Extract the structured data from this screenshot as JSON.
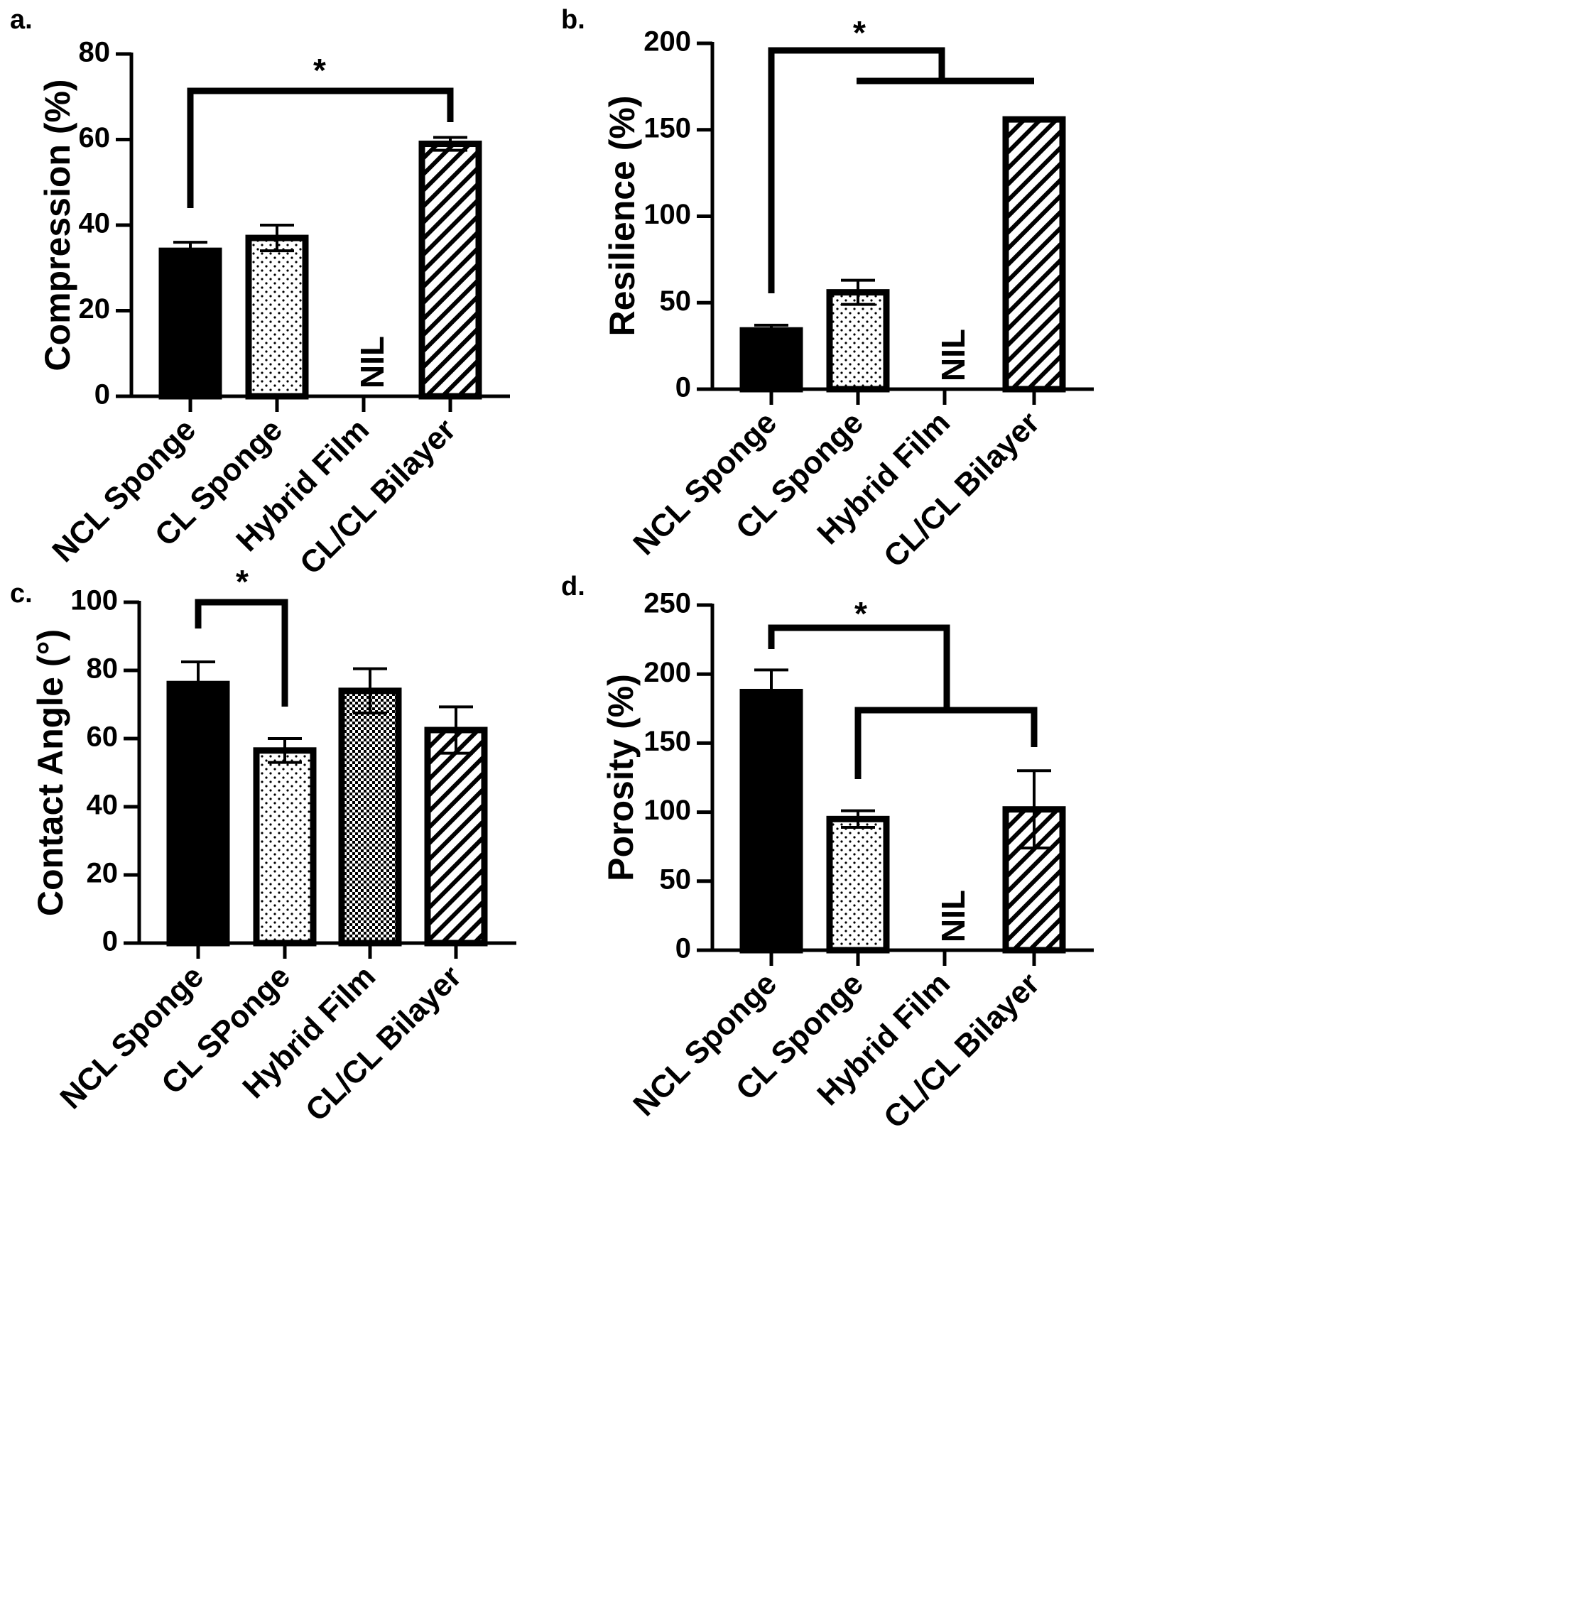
{
  "chart_data": [
    {
      "panel": "a.",
      "type": "bar",
      "ylabel": "Compression (%)",
      "ylim": [
        0,
        80
      ],
      "yticks": [
        "0",
        "20",
        "40",
        "60",
        "80"
      ],
      "categories": [
        "NCL Sponge",
        "CL Sponge",
        "Hybrid Film",
        "CL/CL Bilayer"
      ],
      "values": [
        34,
        37,
        null,
        59
      ],
      "errors": [
        2,
        3,
        null,
        1.5
      ],
      "patterns": [
        "solid",
        "dots",
        "none",
        "hatch"
      ],
      "annotations": [
        {
          "type": "nil",
          "category": 2,
          "text": "NIL"
        },
        {
          "type": "significance",
          "text": "*",
          "from": [
            0
          ],
          "to": [
            3
          ]
        }
      ]
    },
    {
      "panel": "b.",
      "type": "bar",
      "ylabel": "Resilience (%)",
      "ylim": [
        0,
        200
      ],
      "yticks": [
        "0",
        "50",
        "100",
        "150",
        "200"
      ],
      "categories": [
        "NCL Sponge",
        "CL Sponge",
        "Hybrid Film",
        "CL/CL Bilayer"
      ],
      "values": [
        34,
        56,
        null,
        156
      ],
      "errors": [
        3,
        7,
        null,
        0.5
      ],
      "patterns": [
        "solid",
        "dots",
        "none",
        "hatch"
      ],
      "annotations": [
        {
          "type": "nil",
          "category": 2,
          "text": "NIL"
        },
        {
          "type": "significance",
          "text": "*",
          "from": [
            0
          ],
          "to": [
            1,
            3
          ]
        }
      ]
    },
    {
      "panel": "c.",
      "type": "bar",
      "ylabel": "Contact Angle (°)",
      "ylim": [
        0,
        100
      ],
      "yticks": [
        "0",
        "20",
        "40",
        "60",
        "80",
        "100"
      ],
      "categories": [
        "NCL Sponge",
        "CL SPonge",
        "Hybrid Film",
        "CL/CL Bilayer"
      ],
      "values": [
        76,
        56.5,
        74,
        62.5
      ],
      "errors": [
        6.5,
        3.5,
        6.5,
        6.8
      ],
      "patterns": [
        "solid",
        "dots",
        "checker",
        "hatch"
      ],
      "annotations": [
        {
          "type": "significance",
          "text": "*",
          "from": [
            0
          ],
          "to": [
            1
          ]
        }
      ]
    },
    {
      "panel": "d.",
      "type": "bar",
      "ylabel": "Porosity (%)",
      "ylim": [
        0,
        250
      ],
      "yticks": [
        "0",
        "50",
        "100",
        "150",
        "200",
        "250"
      ],
      "categories": [
        "NCL Sponge",
        "CL Sponge",
        "Hybrid Film",
        "CL/CL Bilayer"
      ],
      "values": [
        187,
        95,
        null,
        102
      ],
      "errors": [
        16,
        6,
        null,
        28
      ],
      "patterns": [
        "solid",
        "dots",
        "none",
        "hatch"
      ],
      "annotations": [
        {
          "type": "nil",
          "category": 2,
          "text": "NIL"
        },
        {
          "type": "significance",
          "text": "*",
          "from": [
            0
          ],
          "to": [
            1,
            3
          ]
        }
      ]
    }
  ]
}
